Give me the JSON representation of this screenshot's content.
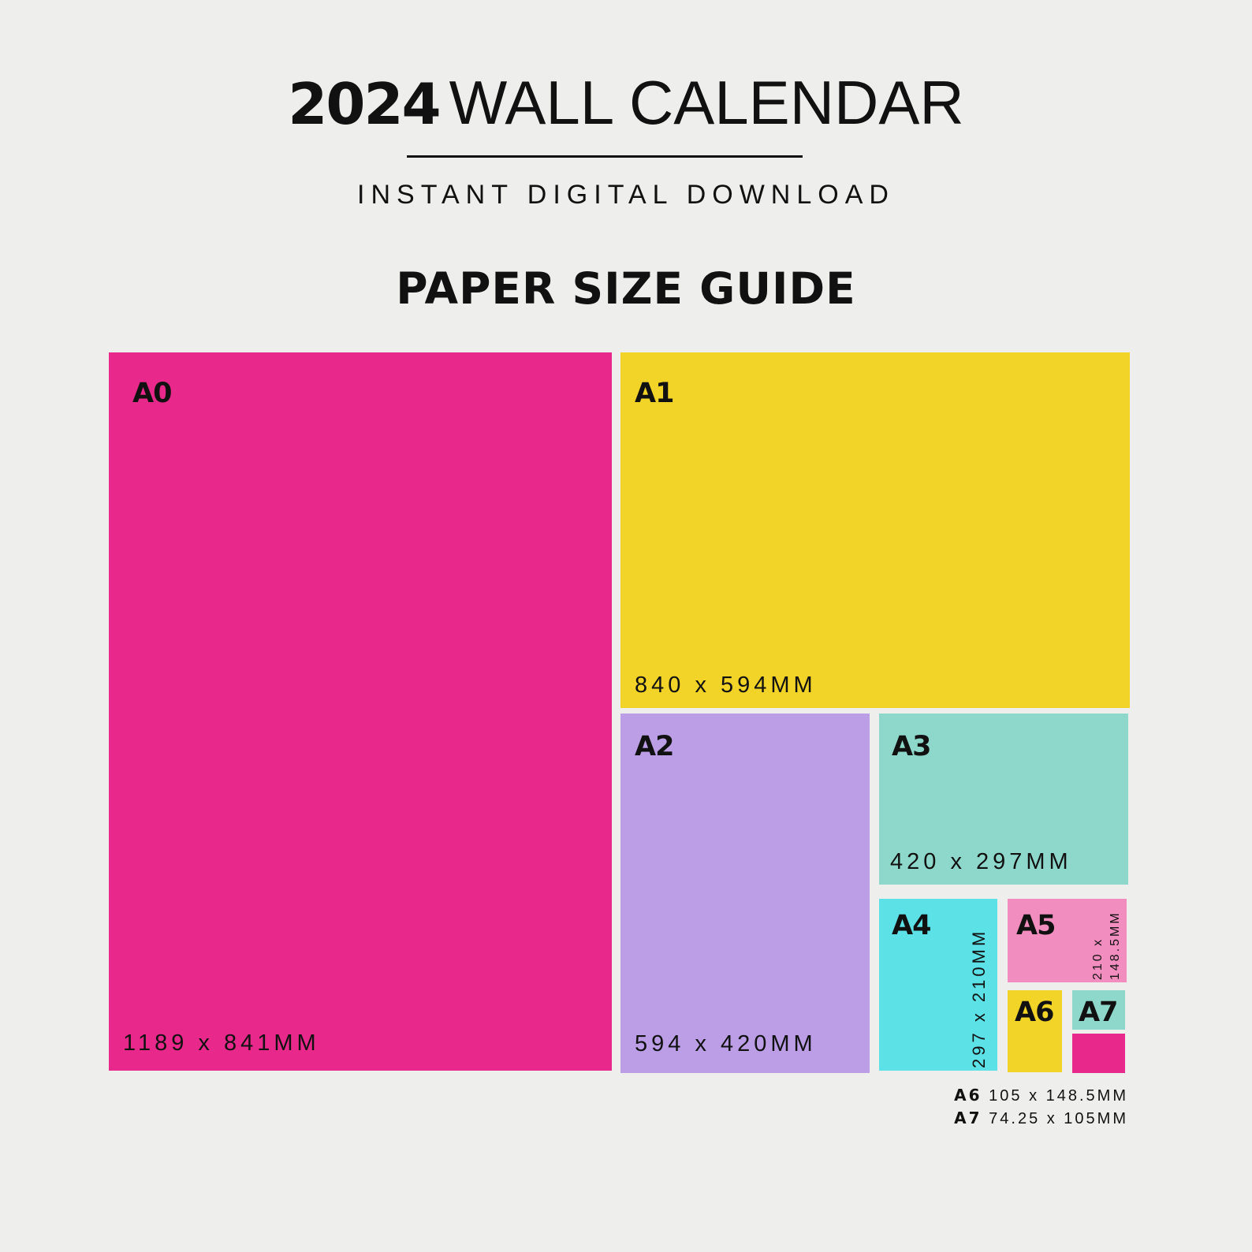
{
  "header": {
    "year": "2024",
    "title": "WALL CALENDAR",
    "subtitle": "INSTANT DIGITAL DOWNLOAD",
    "heading": "PAPER SIZE GUIDE"
  },
  "colors": {
    "background": "#EEEFEC",
    "a0": "#E8288A",
    "a1": "#F2D327",
    "a2": "#BB9EE6",
    "a3": "#8ED8CB",
    "a4": "#5CE1E6",
    "a5": "#F28DC0",
    "a6": "#F2D327",
    "a7": "#8ED8CB",
    "a7_extra": "#E8288A"
  },
  "sizes": [
    {
      "label": "A0",
      "dims": "1189 x 841MM"
    },
    {
      "label": "A1",
      "dims": "840 x 594MM"
    },
    {
      "label": "A2",
      "dims": "594 x 420MM"
    },
    {
      "label": "A3",
      "dims": "420 x 297MM"
    },
    {
      "label": "A4",
      "dims": "297 x 210MM"
    },
    {
      "label": "A5",
      "dims_line1": "210 x",
      "dims_line2": "148.5MM"
    },
    {
      "label": "A6"
    },
    {
      "label": "A7"
    }
  ],
  "footnotes": [
    {
      "label": "A6",
      "dims": "105 x 148.5MM"
    },
    {
      "label": "A7",
      "dims": "74.25 x 105MM"
    }
  ]
}
